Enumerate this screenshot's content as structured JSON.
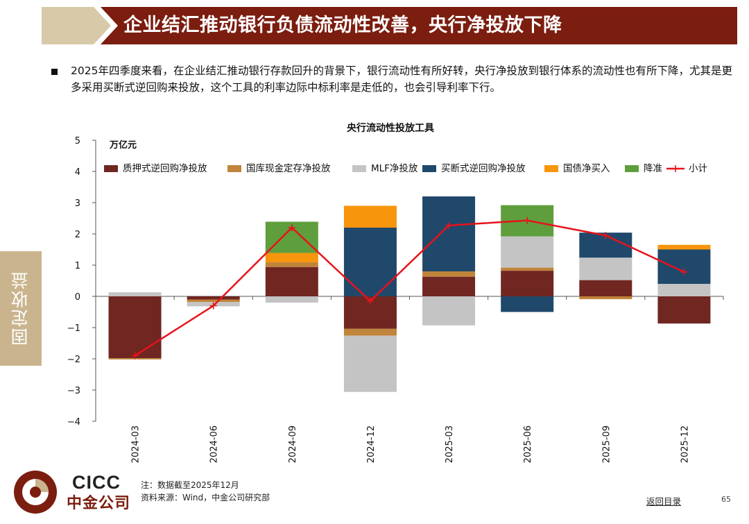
{
  "header": {
    "title": "企业结汇推动银行负债流动性改善，央行净投放下降"
  },
  "intro": {
    "text": "2025年四季度来看，在企业结汇推动银行存款回升的背景下，银行流动性有所好转，央行净投放到银行体系的流动性也有所下降，尤其是更多采用买断式逆回购来投放，这个工具的利率边际中标利率是走低的，也会引导利率下行。"
  },
  "side_tab": {
    "label": "固定收益"
  },
  "colors": {
    "banner": "#7b1d0f",
    "banner_light": "#d8c9a8",
    "side_tab": "#c9b48d",
    "pledged_repo": "#702621",
    "treasury_deposit": "#c0843a",
    "mlf": "#c4c4c4",
    "outright_repo": "#20486b",
    "bond_purchase": "#f7950d",
    "rrr_cut": "#5f9e3d",
    "subtotal": "#e8121b"
  },
  "chart_data": {
    "type": "bar",
    "stacked": true,
    "title": "央行流动性投放工具",
    "ylabel": "万亿元",
    "ylim": [
      -4,
      5
    ],
    "yticks": [
      "5",
      "4",
      "3",
      "2",
      "1",
      "0",
      "−1",
      "−2",
      "−3",
      "−4"
    ],
    "grid": false,
    "legend_position": "top",
    "categories": [
      "2024-03",
      "2024-06",
      "2024-09",
      "2024-12",
      "2025-03",
      "2025-06",
      "2025-09",
      "2025-12"
    ],
    "series": [
      {
        "name": "质押式逆回购净投放",
        "values": [
          -1.98,
          -0.1,
          0.94,
          -1.04,
          0.63,
          0.82,
          0.52,
          -0.87
        ]
      },
      {
        "name": "国库现金定存净投放",
        "values": [
          -0.04,
          -0.08,
          0.15,
          -0.22,
          0.17,
          0.1,
          -0.09,
          0.0
        ]
      },
      {
        "name": "MLF净投放",
        "values": [
          0.13,
          -0.14,
          -0.2,
          -1.8,
          -0.93,
          1.0,
          0.72,
          0.4
        ]
      },
      {
        "name": "买断式逆回购净投放",
        "values": [
          0.0,
          0.0,
          0.0,
          2.2,
          2.4,
          -0.5,
          0.8,
          1.1
        ]
      },
      {
        "name": "国债净买入",
        "values": [
          0.0,
          0.0,
          0.3,
          0.7,
          0.0,
          0.0,
          0.0,
          0.15
        ]
      },
      {
        "name": "降准",
        "values": [
          0.0,
          0.0,
          1.0,
          0.0,
          0.0,
          1.0,
          0.0,
          0.0
        ]
      }
    ],
    "line": {
      "name": "小计",
      "values": [
        -1.9,
        -0.3,
        2.2,
        -0.15,
        2.27,
        2.43,
        1.95,
        0.78
      ]
    }
  },
  "footer": {
    "logo_en": "CICC",
    "logo_cn": "中金公司",
    "note": "注：数据截至2025年12月",
    "source": "资料来源：Wind，中金公司研究部",
    "back_link": "返回目录",
    "page_number": "65"
  }
}
